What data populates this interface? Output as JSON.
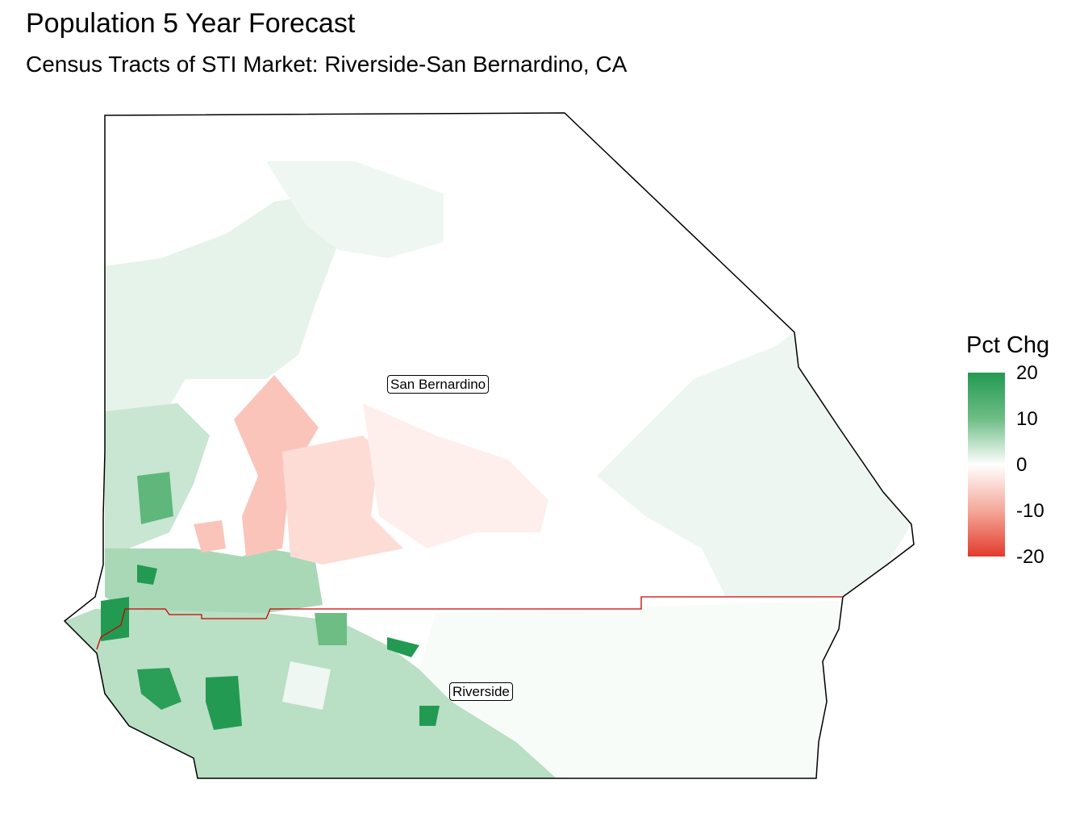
{
  "title": "Population 5 Year Forecast",
  "subtitle": "Census Tracts of STI Market: Riverside-San Bernardino, CA",
  "legend": {
    "title": "Pct Chg",
    "ticks": [
      "20",
      "10",
      "0",
      "-10",
      "-20"
    ],
    "tick_values": [
      20,
      10,
      0,
      -10,
      -20
    ],
    "colors": {
      "high": "#239a52",
      "mid": "#ffffff",
      "low": "#e23b2c"
    }
  },
  "counties": [
    {
      "name": "San Bernardino"
    },
    {
      "name": "Riverside"
    }
  ],
  "colors": {
    "outline": "#000000",
    "county_border": "#cc0000"
  }
}
